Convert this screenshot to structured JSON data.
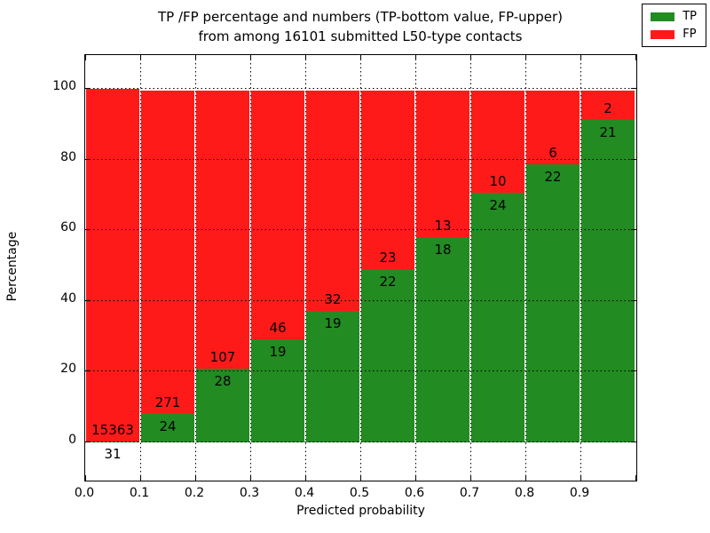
{
  "figure": {
    "title_line1": "TP /FP percentage and numbers (TP-bottom value, FP-upper)",
    "title_line2": "from among 16101 submitted L50-type contacts",
    "total_contacts": "16101"
  },
  "chart_data": {
    "type": "bar",
    "stacked": true,
    "title": "TP /FP percentage and numbers (TP-bottom value, FP-upper)\nfrom among 16101 submitted L50-type contacts",
    "xlabel": "Predicted probability",
    "ylabel": "Percentage",
    "bin_edges": [
      0.0,
      0.1,
      0.2,
      0.3,
      0.4,
      0.5,
      0.6,
      0.7,
      0.8,
      0.9,
      1.0
    ],
    "x_tick_labels": [
      "0.0",
      "0.1",
      "0.2",
      "0.3",
      "0.4",
      "0.5",
      "0.6",
      "0.7",
      "0.8",
      "0.9"
    ],
    "y_ticks": [
      0,
      20,
      40,
      60,
      80,
      100
    ],
    "ylim": [
      -10.8,
      109.3
    ],
    "grid": "dotted-black-both-axes",
    "legend_position": "upper-right",
    "series": [
      {
        "name": "TP",
        "color": "#228b22",
        "counts": [
          31,
          24,
          28,
          19,
          19,
          22,
          18,
          24,
          22,
          21
        ]
      },
      {
        "name": "FP",
        "color": "#ff1a1a",
        "counts": [
          15363,
          271,
          107,
          46,
          32,
          23,
          13,
          10,
          6,
          2
        ]
      }
    ],
    "tp_percent": [
      0.2,
      8.1,
      20.7,
      29.2,
      37.3,
      48.9,
      58.1,
      70.6,
      78.6,
      91.3
    ]
  },
  "colors": {
    "tp": "#228b22",
    "fp": "#ff1a1a",
    "background": "#ffffff",
    "text": "#000000"
  }
}
